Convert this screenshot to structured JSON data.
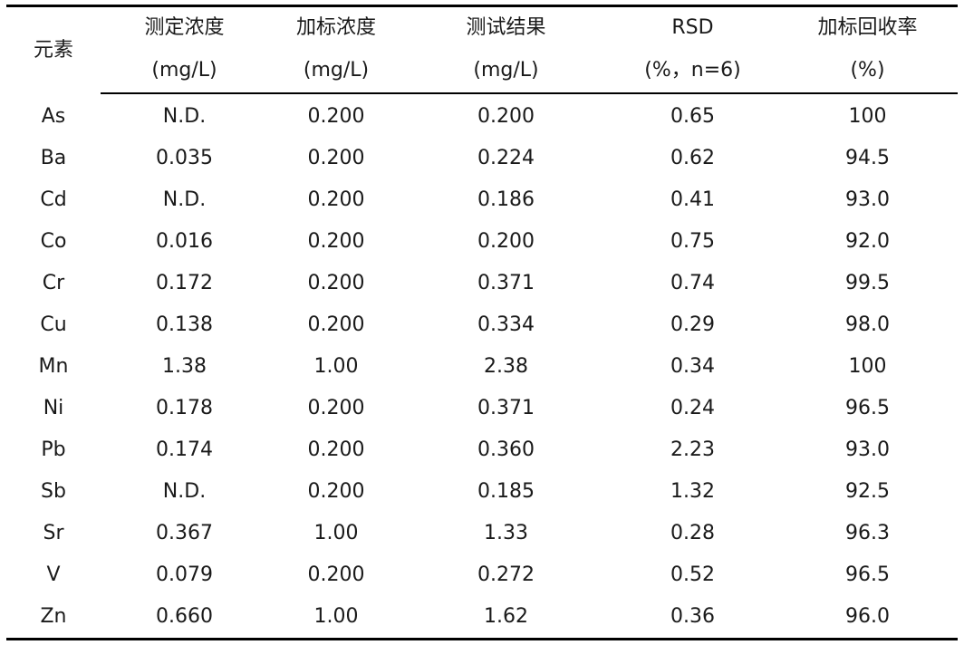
{
  "header": {
    "element": "元素",
    "columns": [
      {
        "line1": "测定浓度",
        "line2": "(mg/L)"
      },
      {
        "line1": "加标浓度",
        "line2": "(mg/L)"
      },
      {
        "line1": "测试结果",
        "line2": "(mg/L)"
      },
      {
        "line1": "RSD",
        "line2": "(%，n=6)"
      },
      {
        "line1": "加标回收率",
        "line2": "(%)"
      }
    ]
  },
  "rows": [
    [
      "As",
      "N.D.",
      "0.200",
      "0.200",
      "0.65",
      "100"
    ],
    [
      "Ba",
      "0.035",
      "0.200",
      "0.224",
      "0.62",
      "94.5"
    ],
    [
      "Cd",
      "N.D.",
      "0.200",
      "0.186",
      "0.41",
      "93.0"
    ],
    [
      "Co",
      "0.016",
      "0.200",
      "0.200",
      "0.75",
      "92.0"
    ],
    [
      "Cr",
      "0.172",
      "0.200",
      "0.371",
      "0.74",
      "99.5"
    ],
    [
      "Cu",
      "0.138",
      "0.200",
      "0.334",
      "0.29",
      "98.0"
    ],
    [
      "Mn",
      "1.38",
      "1.00",
      "2.38",
      "0.34",
      "100"
    ],
    [
      "Ni",
      "0.178",
      "0.200",
      "0.371",
      "0.24",
      "96.5"
    ],
    [
      "Pb",
      "0.174",
      "0.200",
      "0.360",
      "2.23",
      "93.0"
    ],
    [
      "Sb",
      "N.D.",
      "0.200",
      "0.185",
      "1.32",
      "92.5"
    ],
    [
      "Sr",
      "0.367",
      "1.00",
      "1.33",
      "0.28",
      "96.3"
    ],
    [
      "V",
      "0.079",
      "0.200",
      "0.272",
      "0.52",
      "96.5"
    ],
    [
      "Zn",
      "0.660",
      "1.00",
      "1.62",
      "0.36",
      "96.0"
    ]
  ],
  "chart_data": {
    "type": "table",
    "columns": [
      "元素",
      "测定浓度 (mg/L)",
      "加标浓度 (mg/L)",
      "测试结果 (mg/L)",
      "RSD (%，n=6)",
      "加标回收率 (%)"
    ]
  }
}
